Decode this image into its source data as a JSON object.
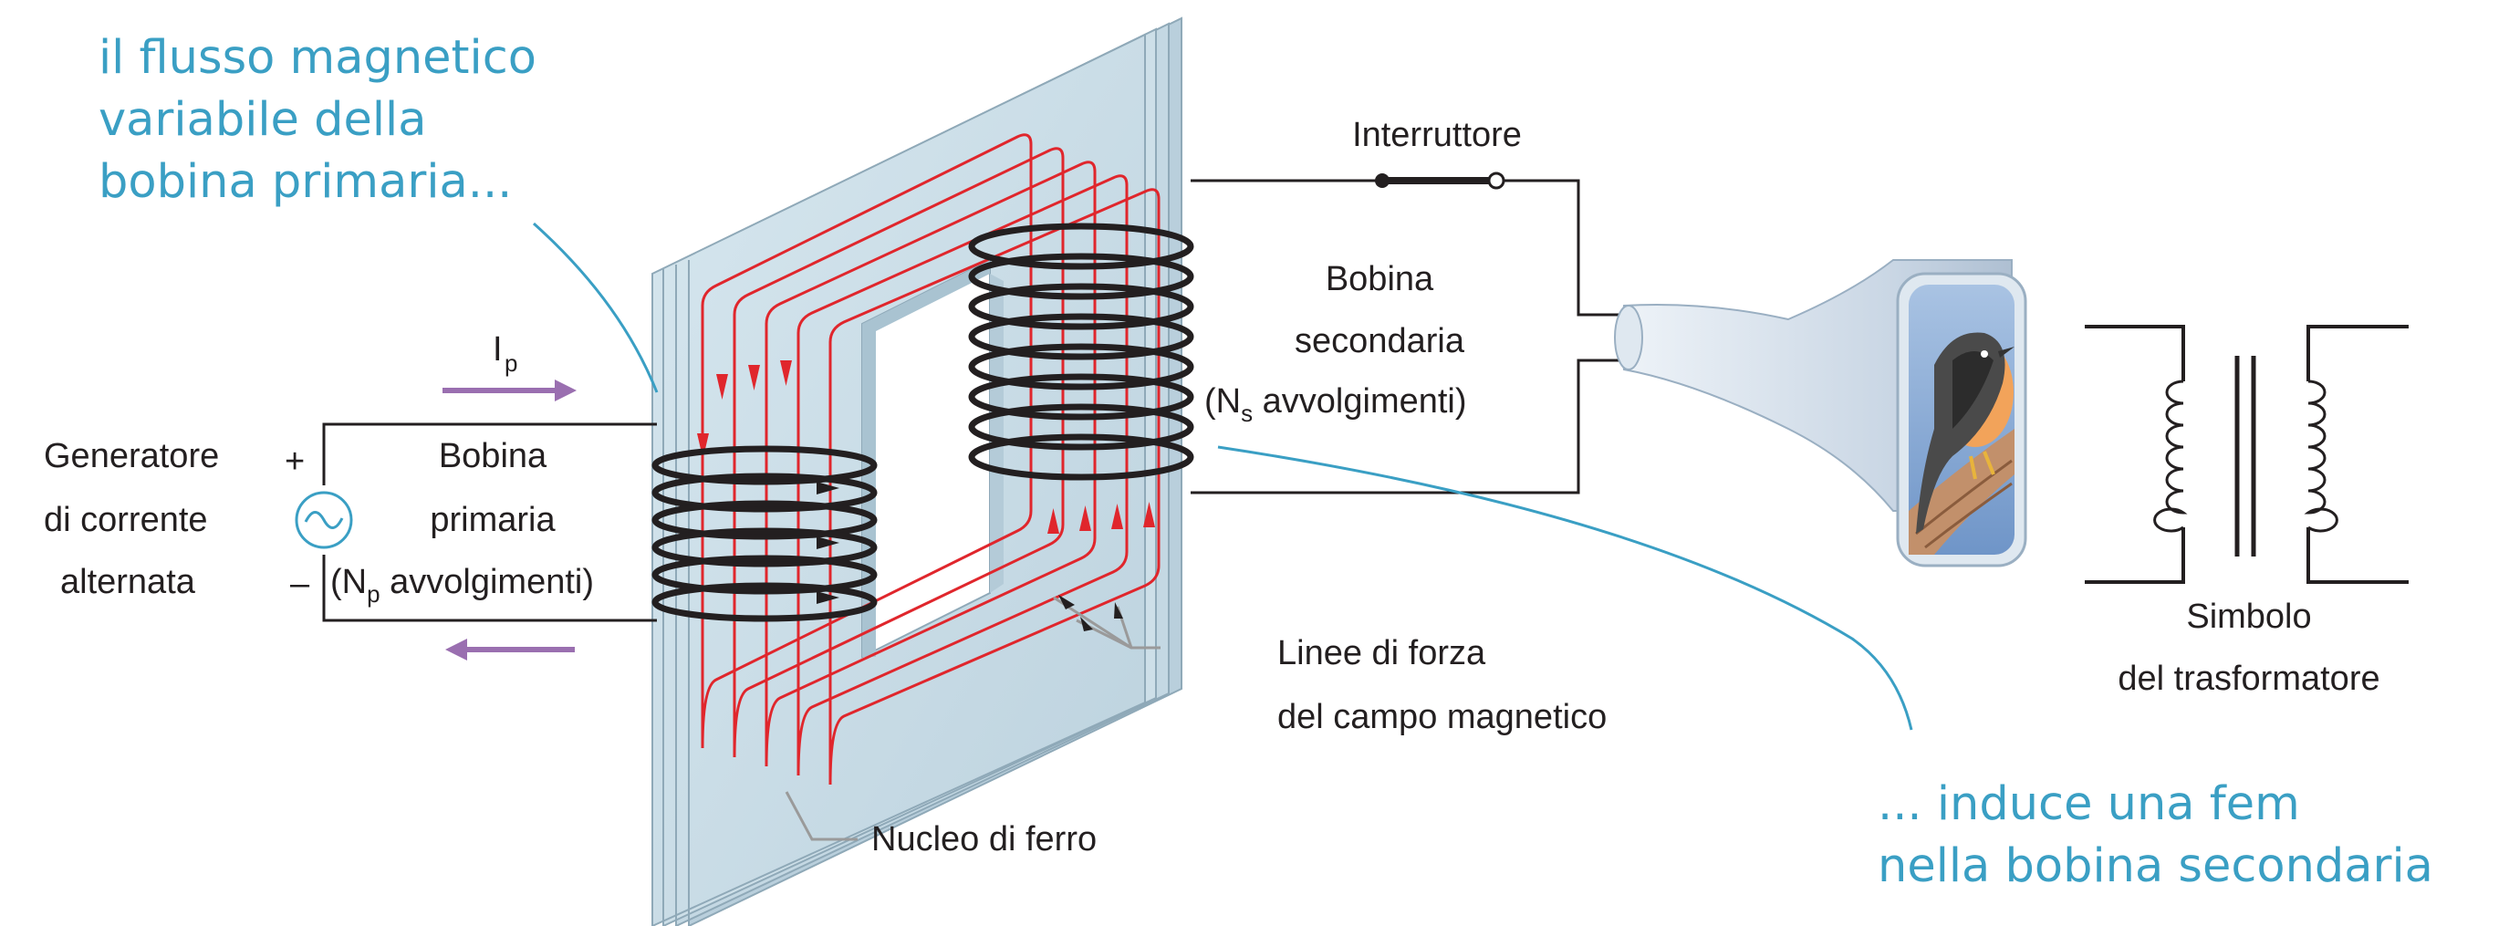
{
  "annotations": {
    "primary_flux": {
      "line1": "il flusso magnetico",
      "line2": "variabile della",
      "line3": "bobina primaria..."
    },
    "induces_emf": {
      "line1": "... induce una fem",
      "line2": "nella bobina secondaria"
    }
  },
  "labels": {
    "switch": "Interruttore",
    "current_symbol": "I",
    "current_subscript": "p",
    "generator": {
      "line1": "Generatore",
      "line2": "di corrente",
      "line3": "alternata",
      "plus": "+",
      "minus": "–"
    },
    "primary_coil": {
      "line1": "Bobina",
      "line2": "primaria",
      "line3_open": "(N",
      "line3_sub": "p",
      "line3_rest": " avvolgimenti)"
    },
    "secondary_coil": {
      "line1": "Bobina",
      "line2": "secondaria",
      "line3_open": "(N",
      "line3_sub": "s",
      "line3_rest": " avvolgimenti)"
    },
    "field_lines": {
      "line1": "Linee di forza",
      "line2": "del campo magnetico"
    },
    "iron_core": "Nucleo di ferro",
    "transformer_symbol": {
      "line1": "Simbolo",
      "line2": "del trasformatore"
    }
  },
  "colors": {
    "annotation": "#3a9fc4",
    "field_lines": "#e0262c",
    "current_arrows": "#9a6fb0",
    "core_front": "#ccdfe9",
    "core_side": "#a9c3d1",
    "wire": "#231f20"
  }
}
